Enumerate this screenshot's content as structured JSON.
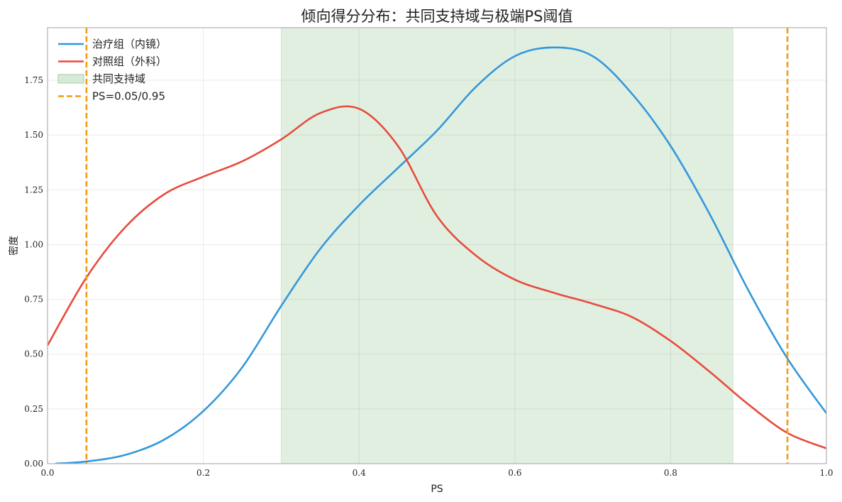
{
  "chart_data": {
    "type": "line",
    "title": "倾向得分分布：共同支持域与极端PS阈值",
    "xlabel": "PS",
    "ylabel": "密度",
    "xlim": [
      0,
      1
    ],
    "ylim": [
      0,
      1.99
    ],
    "grid": true,
    "legend_position": "top-left",
    "x_ticks": [
      "0.0",
      "0.2",
      "0.4",
      "0.6",
      "0.8",
      "1.0"
    ],
    "y_ticks": [
      "0.00",
      "0.25",
      "0.50",
      "0.75",
      "1.00",
      "1.25",
      "1.50",
      "1.75"
    ],
    "series": [
      {
        "name": "治疗组（内镜）",
        "color": "#3498db",
        "x": [
          0.01,
          0.05,
          0.1,
          0.15,
          0.2,
          0.25,
          0.3,
          0.35,
          0.4,
          0.45,
          0.5,
          0.55,
          0.6,
          0.65,
          0.7,
          0.75,
          0.8,
          0.85,
          0.9,
          0.95,
          1.0
        ],
        "y": [
          0.0,
          0.01,
          0.04,
          0.11,
          0.24,
          0.44,
          0.72,
          0.98,
          1.18,
          1.35,
          1.52,
          1.72,
          1.86,
          1.9,
          1.86,
          1.69,
          1.45,
          1.14,
          0.79,
          0.48,
          0.23
        ]
      },
      {
        "name": "对照组（外科）",
        "color": "#e74c3c",
        "x": [
          0.0,
          0.05,
          0.1,
          0.15,
          0.2,
          0.25,
          0.3,
          0.35,
          0.4,
          0.45,
          0.5,
          0.55,
          0.6,
          0.65,
          0.7,
          0.75,
          0.8,
          0.85,
          0.9,
          0.95,
          1.0
        ],
        "y": [
          0.54,
          0.85,
          1.08,
          1.23,
          1.31,
          1.38,
          1.48,
          1.6,
          1.62,
          1.45,
          1.13,
          0.95,
          0.84,
          0.78,
          0.73,
          0.67,
          0.56,
          0.42,
          0.27,
          0.14,
          0.07
        ]
      }
    ],
    "shaded_region": {
      "name": "共同支持域",
      "x_start": 0.3,
      "x_end": 0.88,
      "color": "#c8e2c8"
    },
    "threshold_lines": {
      "name": "PS=0.05/0.95",
      "values": [
        0.05,
        0.95
      ],
      "color": "#f39c12"
    }
  }
}
